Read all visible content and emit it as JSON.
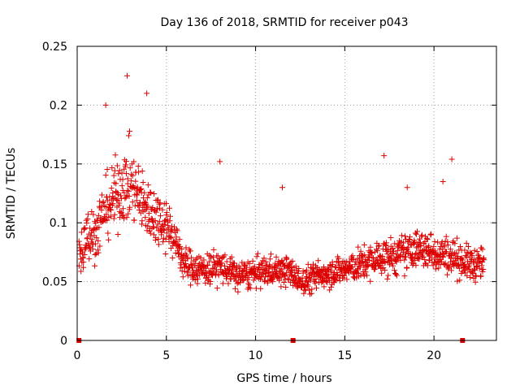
{
  "chart_data": {
    "type": "scatter",
    "title": "Day 136 of 2018, SRMTID for receiver p043",
    "xlabel": "GPS time / hours",
    "ylabel": "SRMTID / TECUs",
    "xlim": [
      0,
      23.5
    ],
    "ylim": [
      0,
      0.25
    ],
    "x_ticks": [
      0,
      5,
      10,
      15,
      20
    ],
    "x_tick_labels": [
      "0",
      "5",
      "10",
      "15",
      "20"
    ],
    "y_ticks": [
      0,
      0.05,
      0.1,
      0.15,
      0.2,
      0.25
    ],
    "y_tick_labels": [
      "0",
      "0.05",
      "0.1",
      "0.15",
      "0.2",
      "0.25"
    ],
    "grid": true,
    "marker": "+",
    "color": "#dd0000",
    "series": [
      {
        "name": "SRMTID",
        "trend": {
          "x": [
            0.0,
            0.5,
            1.0,
            1.5,
            2.0,
            2.5,
            3.0,
            3.5,
            4.0,
            4.5,
            5.0,
            5.5,
            6.0,
            7.0,
            8.0,
            9.0,
            10.0,
            11.0,
            12.0,
            12.5,
            13.0,
            14.0,
            15.0,
            16.0,
            17.0,
            18.0,
            19.0,
            20.0,
            21.0,
            22.0,
            22.8
          ],
          "y": [
            0.065,
            0.085,
            0.09,
            0.11,
            0.12,
            0.13,
            0.135,
            0.12,
            0.11,
            0.105,
            0.1,
            0.085,
            0.065,
            0.06,
            0.063,
            0.055,
            0.057,
            0.06,
            0.058,
            0.05,
            0.052,
            0.058,
            0.06,
            0.065,
            0.07,
            0.072,
            0.078,
            0.075,
            0.072,
            0.065,
            0.065
          ]
        },
        "spread": [
          0.03,
          0.035,
          0.04,
          0.045,
          0.05,
          0.055,
          0.055,
          0.05,
          0.045,
          0.04,
          0.04,
          0.03,
          0.025,
          0.025,
          0.025,
          0.022,
          0.022,
          0.022,
          0.022,
          0.02,
          0.022,
          0.022,
          0.022,
          0.025,
          0.028,
          0.028,
          0.028,
          0.028,
          0.028,
          0.025,
          0.025
        ],
        "n_points": 1400,
        "x_range": [
          0.1,
          22.8
        ],
        "peaks": [
          {
            "x": 2.8,
            "y": 0.225
          },
          {
            "x": 3.9,
            "y": 0.21
          },
          {
            "x": 1.6,
            "y": 0.2
          },
          {
            "x": 8.0,
            "y": 0.152
          },
          {
            "x": 17.2,
            "y": 0.157
          },
          {
            "x": 21.0,
            "y": 0.154
          },
          {
            "x": 11.5,
            "y": 0.13
          },
          {
            "x": 20.5,
            "y": 0.135
          },
          {
            "x": 18.5,
            "y": 0.13
          }
        ],
        "zero_values": [
          {
            "x": 0.1,
            "y": 0
          },
          {
            "x": 12.1,
            "y": 0
          },
          {
            "x": 21.6,
            "y": 0
          }
        ]
      }
    ]
  }
}
